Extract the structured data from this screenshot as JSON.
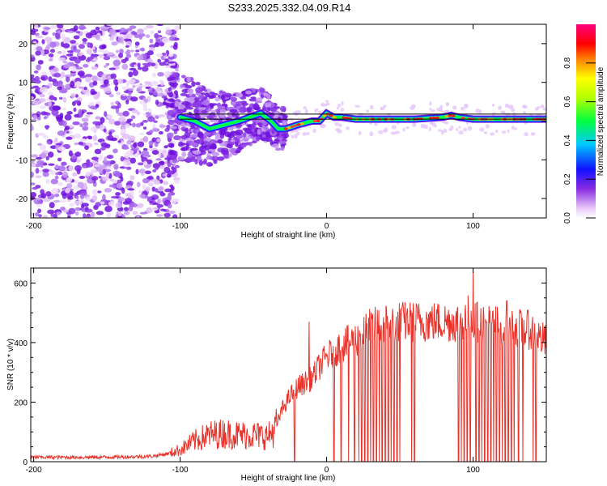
{
  "title": "S233.2025.332.04.09.R14",
  "chart_data": [
    {
      "type": "heatmap",
      "xlabel": "Height of straight line (km)",
      "ylabel": "Frequency (Hz)",
      "xlim": [
        -202,
        150
      ],
      "ylim": [
        -25,
        25
      ],
      "xticks": [
        -200,
        -100,
        0,
        100
      ],
      "yticks": [
        -20,
        -10,
        0,
        10,
        20
      ],
      "colorbar": {
        "label": "Normalized spectral amplitude",
        "ticks": [
          "0.0",
          "0.2",
          "0.4",
          "0.6",
          "0.8"
        ],
        "range": [
          0,
          1
        ]
      },
      "reference_lines": [
        0.5,
        1.8
      ],
      "ridge": {
        "x": [
          -100,
          -90,
          -80,
          -60,
          -45,
          -38,
          -33,
          -28,
          -20,
          -10,
          -5,
          0,
          5,
          10,
          20,
          30,
          40,
          60,
          80,
          85,
          90,
          100,
          110,
          120,
          130,
          140,
          150
        ],
        "freq": [
          1,
          0,
          -2,
          0,
          2,
          0,
          -2,
          -2,
          -1,
          0,
          0,
          2,
          1,
          1,
          0.5,
          0.5,
          0.5,
          0.5,
          1,
          1.5,
          1,
          0.5,
          0.5,
          0.5,
          0.5,
          0.5,
          0.5
        ]
      }
    },
    {
      "type": "line",
      "xlabel": "Height of straight line (km)",
      "ylabel": "SNR (10 * v/v)",
      "xlim": [
        -202,
        150
      ],
      "ylim": [
        0,
        650
      ],
      "xticks": [
        -200,
        -100,
        0,
        100
      ],
      "yticks": [
        0,
        200,
        400,
        600
      ],
      "series": [
        {
          "name": "SNR",
          "color": "#e8322a",
          "x": [
            -202,
            -180,
            -160,
            -140,
            -120,
            -110,
            -100,
            -90,
            -80,
            -70,
            -60,
            -50,
            -40,
            -35,
            -30,
            -25,
            -20,
            -10,
            -5,
            0,
            5,
            10,
            15,
            20,
            25,
            30,
            40,
            50,
            60,
            70,
            80,
            90,
            95,
            98,
            100,
            105,
            110,
            120,
            130,
            140,
            150
          ],
          "y": [
            15,
            15,
            15,
            16,
            18,
            25,
            40,
            70,
            90,
            95,
            90,
            90,
            85,
            110,
            180,
            220,
            250,
            280,
            320,
            350,
            370,
            390,
            400,
            410,
            430,
            450,
            465,
            470,
            470,
            470,
            470,
            470,
            480,
            500,
            470,
            470,
            465,
            455,
            450,
            440,
            400
          ]
        }
      ],
      "dropouts": [
        -22,
        5,
        10,
        15,
        19,
        22,
        24,
        26,
        28,
        30,
        32,
        34,
        36,
        38,
        40,
        42,
        44,
        46,
        48,
        50,
        58,
        60,
        90,
        92,
        94,
        96,
        98,
        102,
        104,
        106,
        108,
        110,
        112,
        114,
        116,
        118,
        120,
        122,
        124,
        126,
        128,
        131,
        134,
        141,
        143
      ],
      "spikes": [
        {
          "x": -12,
          "y": 470
        },
        {
          "x": 100,
          "y": 650
        },
        {
          "x": 123,
          "y": 540
        }
      ]
    }
  ]
}
